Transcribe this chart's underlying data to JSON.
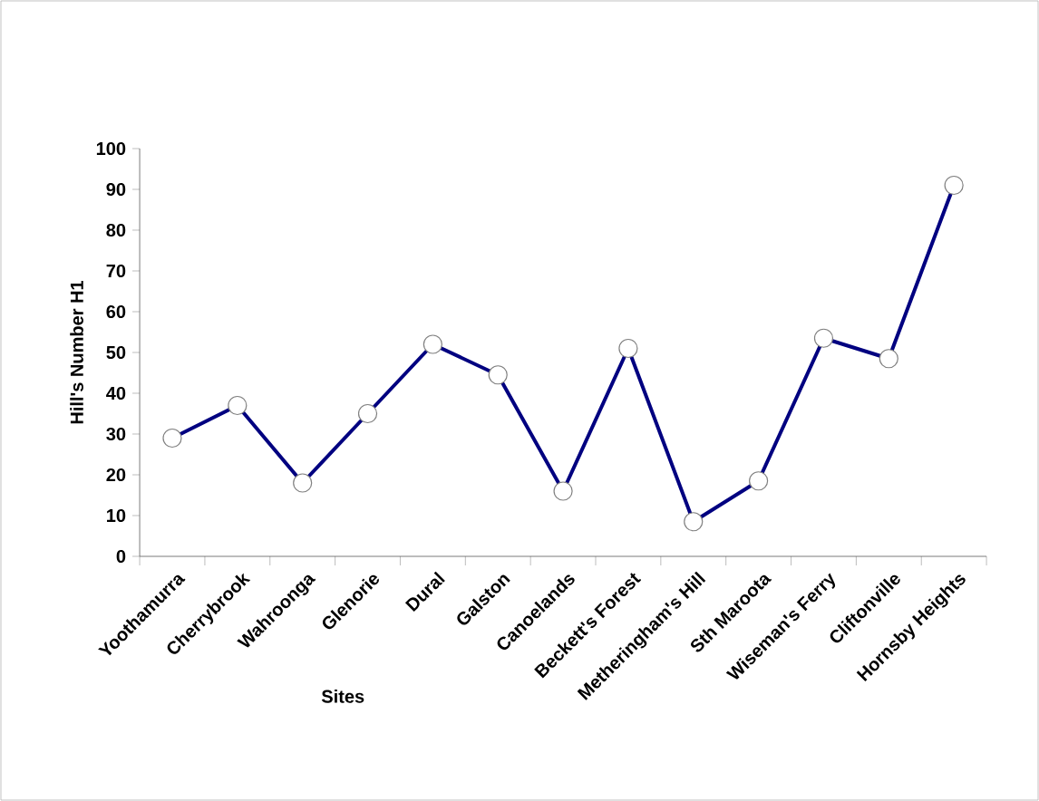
{
  "chart_data": {
    "type": "line",
    "xlabel": "Sites",
    "ylabel": "Hill's Number H1",
    "categories": [
      "Yoothamurra",
      "Cherrybrook",
      "Wahroonga",
      "Glenorie",
      "Dural",
      "Galston",
      "Canoelands",
      "Beckett's Forest",
      "Metheringham's Hill",
      "Sth Maroota",
      "Wiseman's Ferry",
      "Cliftonville",
      "Hornsby Heights"
    ],
    "values": [
      29,
      37,
      18,
      35,
      52,
      44.5,
      16,
      51,
      8.5,
      18.5,
      53.5,
      48.5,
      91
    ],
    "color": "#000080",
    "marker": "circle",
    "ylim": [
      0,
      100
    ],
    "yticks": [
      0,
      10,
      20,
      30,
      40,
      50,
      60,
      70,
      80,
      90,
      100
    ]
  }
}
